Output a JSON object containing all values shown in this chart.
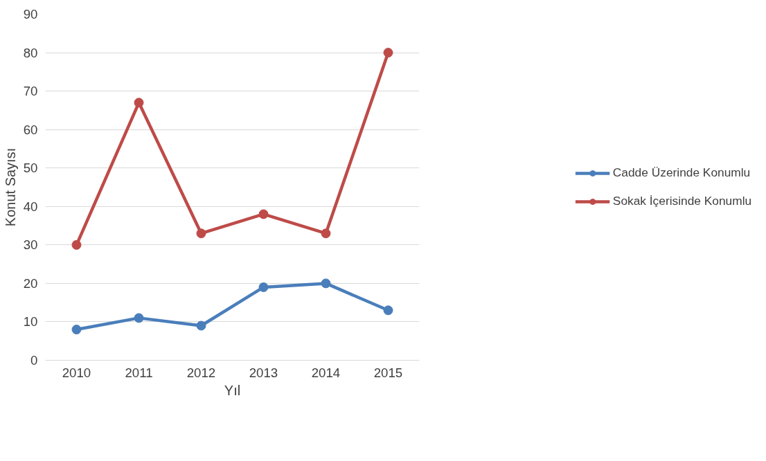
{
  "chart_data": {
    "type": "line",
    "xlabel": "Yıl",
    "ylabel": "Konut Sayısı",
    "categories": [
      "2010",
      "2011",
      "2012",
      "2013",
      "2014",
      "2015"
    ],
    "series": [
      {
        "name": "Cadde Üzerinde Konumlu",
        "color": "#4a7ebb",
        "values": [
          8,
          11,
          9,
          19,
          20,
          13
        ]
      },
      {
        "name": "Sokak İçerisinde Konumlu",
        "color": "#be4b48",
        "values": [
          30,
          67,
          33,
          38,
          33,
          80
        ]
      }
    ],
    "ylim": [
      0,
      90
    ],
    "yticks": [
      0,
      10,
      20,
      30,
      40,
      50,
      60,
      70,
      80,
      90
    ],
    "grid": "y",
    "legend": "right",
    "marker": "circle",
    "line_style": "solid"
  }
}
